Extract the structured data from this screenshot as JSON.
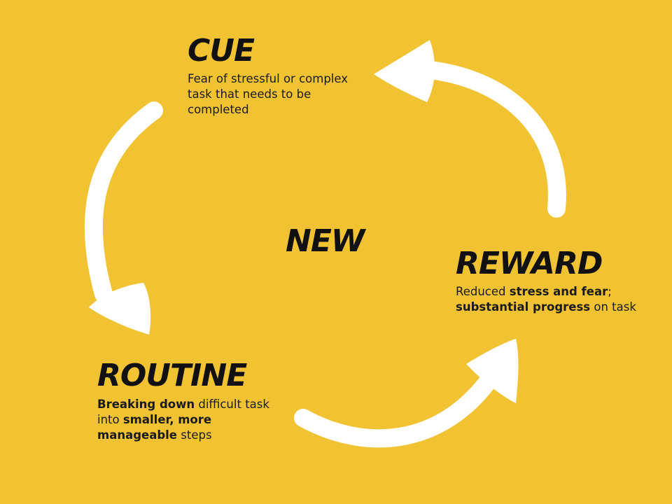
{
  "diagram": {
    "center_label": "NEW",
    "colors": {
      "background": "#f1c232",
      "arrows": "#ffffff",
      "text": "#111111"
    },
    "cue": {
      "title": "CUE",
      "description": "Fear of stressful or complex task that needs to be completed"
    },
    "reward": {
      "title": "REWARD",
      "desc_part1": "Reduced ",
      "desc_bold1": "stress and fear",
      "desc_part2": "; ",
      "desc_bold2": "substantial progress",
      "desc_part3": " on task"
    },
    "routine": {
      "title": "ROUTINE",
      "desc_bold1": "Breaking down",
      "desc_part1": " difficult task into ",
      "desc_bold2": "smaller, more manageable",
      "desc_part2": " steps"
    },
    "arrows": [
      "cue-to-routine-arrow",
      "routine-to-reward-arrow",
      "reward-to-cue-arrow"
    ]
  }
}
